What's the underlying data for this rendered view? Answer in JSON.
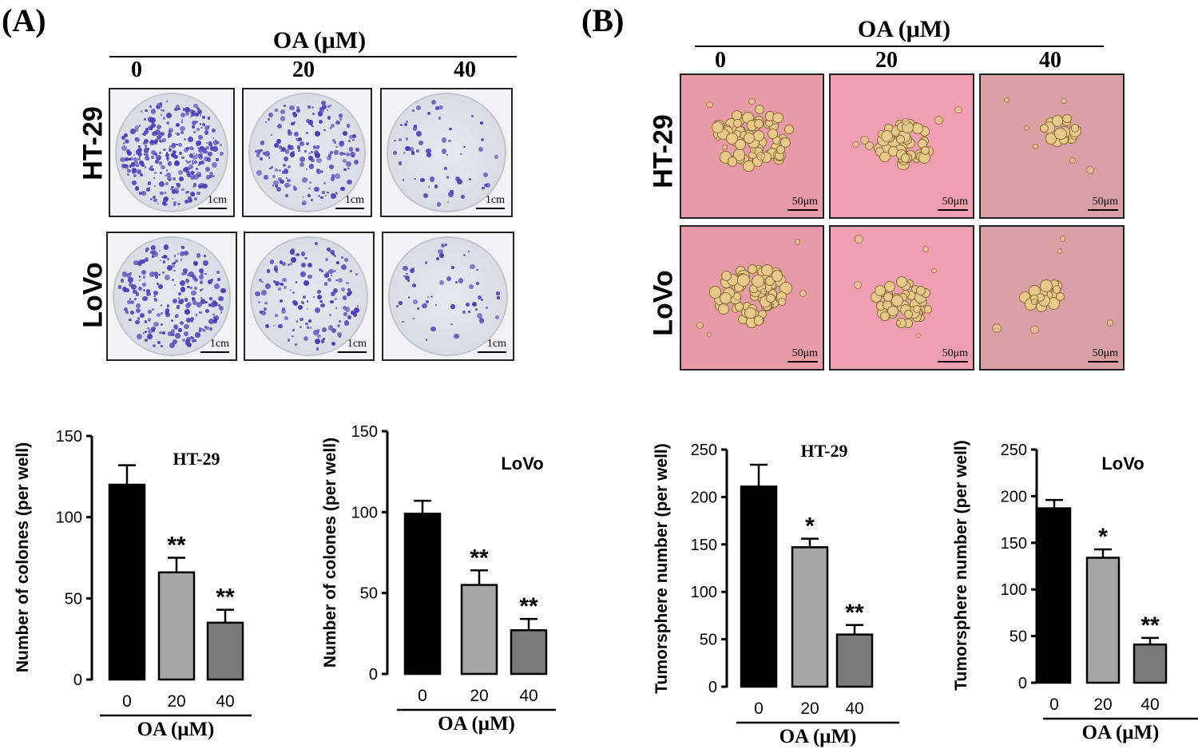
{
  "panels": {
    "a_label": "(A)",
    "b_label": "(B)",
    "oa_header": "OA (μM)",
    "concentrations": [
      "0",
      "20",
      "40"
    ],
    "rows": [
      "HT-29",
      "LoVo"
    ],
    "scale_a": "1cm",
    "scale_b": "50μm"
  },
  "chart_data": [
    {
      "type": "bar",
      "title": "HT-29",
      "categories": [
        "0",
        "20",
        "40"
      ],
      "values": [
        120,
        66,
        35
      ],
      "errors": [
        12,
        9,
        8
      ],
      "significance": [
        "",
        "**",
        "**"
      ],
      "xlabel": "OA (μM)",
      "ylabel": "Number of colones (per well)",
      "ylim": [
        0,
        150
      ],
      "yticks": [
        "0",
        "50",
        "100",
        "150"
      ],
      "colors": [
        "#000000",
        "#a6a6a6",
        "#7a7a7a"
      ]
    },
    {
      "type": "bar",
      "title": "LoVo",
      "categories": [
        "0",
        "20",
        "40"
      ],
      "values": [
        99,
        55,
        27
      ],
      "errors": [
        8,
        9,
        7
      ],
      "significance": [
        "",
        "**",
        "**"
      ],
      "xlabel": "OA (μM)",
      "ylabel": "Number of colones (per well)",
      "ylim": [
        0,
        150
      ],
      "yticks": [
        "0",
        "50",
        "100",
        "150"
      ],
      "colors": [
        "#000000",
        "#a6a6a6",
        "#7a7a7a"
      ]
    },
    {
      "type": "bar",
      "title": "HT-29",
      "categories": [
        "0",
        "20",
        "40"
      ],
      "values": [
        211,
        147,
        55
      ],
      "errors": [
        23,
        9,
        10
      ],
      "significance": [
        "",
        "*",
        "**"
      ],
      "xlabel": "OA (μM)",
      "ylabel": "Tumorsphere number (per well)",
      "ylim": [
        0,
        250
      ],
      "yticks": [
        "0",
        "50",
        "100",
        "150",
        "200",
        "250"
      ],
      "colors": [
        "#000000",
        "#a6a6a6",
        "#7a7a7a"
      ]
    },
    {
      "type": "bar",
      "title": "LoVo",
      "categories": [
        "0",
        "20",
        "40"
      ],
      "values": [
        187,
        134,
        41
      ],
      "errors": [
        9,
        9,
        7
      ],
      "significance": [
        "",
        "*",
        "**"
      ],
      "xlabel": "OA (μM)",
      "ylabel": "Tumorsphere number (per well)",
      "ylim": [
        0,
        250
      ],
      "yticks": [
        "0",
        "50",
        "100",
        "150",
        "200",
        "250"
      ],
      "colors": [
        "#000000",
        "#a6a6a6",
        "#7a7a7a"
      ]
    }
  ]
}
